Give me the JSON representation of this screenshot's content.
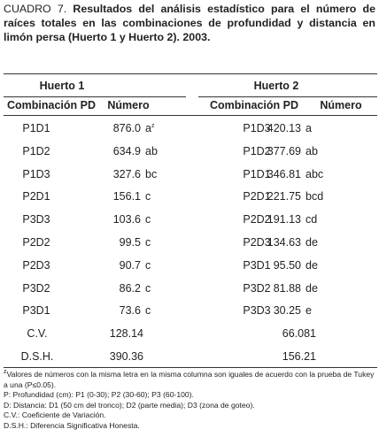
{
  "title": {
    "label": "CUADRO 7.",
    "text": "Resultados del análisis estadístico para el número de raíces totales en las combinaciones de profundidad y distancia en limón persa (Huerto 1 y Huerto 2). 2003."
  },
  "table": {
    "groups": [
      "Huerto 1",
      "Huerto 2"
    ],
    "columns": [
      "Combinación PD",
      "Número",
      "Combinación PD",
      "Número"
    ],
    "rows": [
      {
        "h1": [
          "P1D1",
          "876.0",
          "a"
        ],
        "note": "z",
        "h2": [
          "P1D3",
          "420.13",
          "a"
        ]
      },
      {
        "h1": [
          "P1D2",
          "634.9",
          "ab"
        ],
        "h2": [
          "P1D2",
          "377.69",
          "ab"
        ]
      },
      {
        "h1": [
          "P1D3",
          "327.6",
          "bc"
        ],
        "h2": [
          "P1D1",
          "346.81",
          "abc"
        ]
      },
      {
        "h1": [
          "P2D1",
          "156.1",
          "c"
        ],
        "h2": [
          "P2D1",
          "221.75",
          "bcd"
        ]
      },
      {
        "h1": [
          "P3D3",
          "103.6",
          "c"
        ],
        "h2": [
          "P2D2",
          "191.13",
          "cd"
        ]
      },
      {
        "h1": [
          "P2D2",
          "99.5",
          "c"
        ],
        "h2": [
          "P2D3",
          "134.63",
          "de"
        ]
      },
      {
        "h1": [
          "P2D3",
          "90.7",
          "c"
        ],
        "h2": [
          "P3D1",
          "95.50",
          "de"
        ]
      },
      {
        "h1": [
          "P3D2",
          "86.2",
          "c"
        ],
        "h2": [
          "P3D2",
          "81.88",
          "de"
        ]
      },
      {
        "h1": [
          "P3D1",
          "73.6",
          "c"
        ],
        "h2": [
          "P3D3",
          "30.25",
          "e"
        ]
      }
    ],
    "stats": [
      {
        "label": "C.V.",
        "h1": "128.14",
        "h2": "66.081"
      },
      {
        "label": "D.S.H.",
        "h1": "390.36",
        "h2": "156.21"
      }
    ]
  },
  "footnotes": {
    "marker": "z",
    "items": [
      "Valores de números con la misma letra en la misma columna son iguales de acuerdo con la prueba de Tukey a una (P≤0.05).",
      "P: Profundidad (cm): P1 (0-30); P2 (30-60); P3 (60-100).",
      "D: Distancia: D1 (50 cm del tronco); D2 (parte media); D3 (zona de goteo).",
      "C.V.: Coeficiente de Variación.",
      "D.S.H.: Diferencia Significativa Honesta."
    ]
  }
}
